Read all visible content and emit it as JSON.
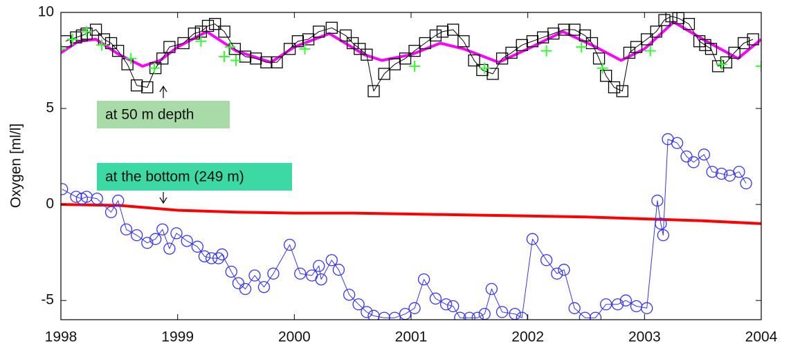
{
  "chart_data": {
    "type": "line",
    "y_label": "Oxygen [ml/l]",
    "xlim": [
      1998,
      2004
    ],
    "xticks": [
      1998,
      1999,
      2000,
      2001,
      2002,
      2003,
      2004
    ],
    "ylim": [
      -6,
      10
    ],
    "yticks": [
      -5,
      0,
      5,
      10
    ],
    "annotations": [
      "at 50 m depth",
      "at the bottom (249 m)"
    ],
    "series": [
      {
        "color": "#ff00ff",
        "marker": "none",
        "linewidth": 4,
        "x": [
          1998.0,
          1998.15,
          1998.3,
          1998.5,
          1998.7,
          1998.85,
          1999.0,
          1999.25,
          1999.5,
          1999.8,
          2000.0,
          2000.3,
          2000.6,
          2000.75,
          2001.0,
          2001.25,
          2001.45,
          2001.75,
          2002.0,
          2002.3,
          2002.55,
          2002.8,
          2003.0,
          2003.25,
          2003.5,
          2003.8,
          2004.0
        ],
        "values": [
          7.9,
          8.5,
          8.6,
          7.8,
          7.2,
          7.5,
          8.2,
          9.0,
          8.0,
          7.4,
          8.2,
          8.9,
          7.8,
          7.5,
          7.8,
          8.4,
          8.1,
          7.4,
          8.1,
          9.0,
          8.3,
          7.5,
          8.1,
          9.5,
          8.6,
          7.6,
          8.6
        ]
      },
      {
        "color": "#000000",
        "marker": "square",
        "linewidth": 1,
        "x": [
          1998.04,
          1998.13,
          1998.18,
          1998.22,
          1998.3,
          1998.37,
          1998.43,
          1998.49,
          1998.57,
          1998.65,
          1998.74,
          1998.81,
          1998.87,
          1998.93,
          1999.05,
          1999.14,
          1999.2,
          1999.26,
          1999.32,
          1999.4,
          1999.49,
          1999.58,
          1999.67,
          1999.76,
          1999.85,
          1999.96,
          2000.03,
          2000.12,
          2000.21,
          2000.32,
          2000.44,
          2000.5,
          2000.56,
          2000.62,
          2000.68,
          2000.77,
          2000.86,
          2000.95,
          2001.03,
          2001.12,
          2001.21,
          2001.27,
          2001.36,
          2001.45,
          2001.54,
          2001.61,
          2001.7,
          2001.78,
          2001.86,
          2001.95,
          2002.04,
          2002.13,
          2002.22,
          2002.31,
          2002.4,
          2002.49,
          2002.55,
          2002.61,
          2002.67,
          2002.74,
          2002.81,
          2002.87,
          2002.93,
          2003.02,
          2003.1,
          2003.17,
          2003.23,
          2003.29,
          2003.38,
          2003.47,
          2003.52,
          2003.57,
          2003.63,
          2003.7,
          2003.77,
          2003.85,
          2003.93
        ],
        "values": [
          8.5,
          8.7,
          8.8,
          8.9,
          9.1,
          8.6,
          8.4,
          8.0,
          7.3,
          6.2,
          6.1,
          7.1,
          7.6,
          8.2,
          8.4,
          8.9,
          9.0,
          9.3,
          9.4,
          9.0,
          8.1,
          7.7,
          7.6,
          7.4,
          7.4,
          8.1,
          8.5,
          8.6,
          9.0,
          9.2,
          8.8,
          8.4,
          8.1,
          7.8,
          5.9,
          6.8,
          7.3,
          7.6,
          8.0,
          8.4,
          8.8,
          9.0,
          9.1,
          8.5,
          7.5,
          7.0,
          6.8,
          7.6,
          7.9,
          8.3,
          8.5,
          8.7,
          8.9,
          9.1,
          9.1,
          8.8,
          8.4,
          7.6,
          6.7,
          6.1,
          5.9,
          7.9,
          8.2,
          8.6,
          9.0,
          9.6,
          9.8,
          9.7,
          9.4,
          8.5,
          8.3,
          8.1,
          7.2,
          7.4,
          7.9,
          8.4,
          8.6
        ]
      },
      {
        "color": "#33ff33",
        "marker": "plus",
        "linewidth": 0,
        "x": [
          1998.0,
          1998.1,
          1998.22,
          1998.35,
          1998.6,
          1998.8,
          1999.2,
          1999.4,
          1999.45,
          1999.5,
          2000.09,
          2001.03,
          2001.63,
          2002.16,
          2002.46,
          2002.64,
          2003.05,
          2003.66,
          2004.0
        ],
        "values": [
          8.1,
          8.6,
          9.0,
          8.3,
          7.6,
          7.1,
          8.5,
          7.7,
          8.2,
          7.5,
          8.1,
          7.2,
          7.1,
          8.0,
          8.2,
          7.1,
          8.0,
          7.3,
          7.2
        ]
      },
      {
        "color": "#ff0000",
        "marker": "none",
        "linewidth": 4,
        "x": [
          1998.0,
          1998.5,
          1999.0,
          1999.5,
          2000.0,
          2000.5,
          2001.0,
          2001.5,
          2002.0,
          2002.5,
          2003.0,
          2003.5,
          2004.0
        ],
        "values": [
          0,
          -0.05,
          -0.3,
          -0.4,
          -0.45,
          -0.45,
          -0.5,
          -0.55,
          -0.6,
          -0.65,
          -0.75,
          -0.85,
          -1.0
        ]
      },
      {
        "color": "#3333ff",
        "marker": "circle",
        "linewidth": 1,
        "x": [
          1998.01,
          1998.13,
          1998.18,
          1998.22,
          1998.31,
          1998.43,
          1998.49,
          1998.56,
          1998.65,
          1998.74,
          1998.81,
          1998.87,
          1998.93,
          1998.99,
          1999.08,
          1999.17,
          1999.23,
          1999.29,
          1999.35,
          1999.38,
          1999.46,
          1999.52,
          1999.58,
          1999.66,
          1999.74,
          1999.82,
          1999.96,
          2000.05,
          2000.15,
          2000.21,
          2000.23,
          2000.32,
          2000.38,
          2000.47,
          2000.55,
          2000.62,
          2000.68,
          2000.77,
          2000.86,
          2000.95,
          2001.03,
          2001.11,
          2001.21,
          2001.3,
          2001.36,
          2001.42,
          2001.5,
          2001.57,
          2001.63,
          2001.69,
          2001.78,
          2001.89,
          2001.95,
          2002.04,
          2002.16,
          2002.25,
          2002.31,
          2002.4,
          2002.49,
          2002.58,
          2002.67,
          2002.77,
          2002.84,
          2002.93,
          2003.02,
          2003.11,
          2003.14,
          2003.16,
          2003.2,
          2003.28,
          2003.36,
          2003.42,
          2003.51,
          2003.58,
          2003.66,
          2003.73,
          2003.81,
          2003.87
        ],
        "values": [
          0.8,
          0.4,
          0.3,
          0.4,
          0.3,
          -0.4,
          0.2,
          -1.3,
          -1.6,
          -2.0,
          -1.8,
          -1.3,
          -2.3,
          -1.5,
          -1.9,
          -2.2,
          -2.7,
          -2.8,
          -2.8,
          -2.6,
          -3.5,
          -4.1,
          -4.4,
          -3.7,
          -4.3,
          -3.6,
          -2.1,
          -3.6,
          -3.7,
          -3.2,
          -3.9,
          -2.9,
          -3.4,
          -4.7,
          -5.2,
          -5.6,
          -5.8,
          -5.9,
          -5.9,
          -5.7,
          -5.4,
          -3.9,
          -4.9,
          -5.2,
          -5.3,
          -5.9,
          -5.9,
          -5.9,
          -5.7,
          -4.4,
          -5.6,
          -5.7,
          -5.9,
          -1.8,
          -2.9,
          -3.6,
          -3.4,
          -5.4,
          -5.9,
          -5.9,
          -5.2,
          -5.2,
          -5.0,
          -5.3,
          -5.4,
          0.2,
          -1.0,
          -1.6,
          3.4,
          3.2,
          2.5,
          2.2,
          2.6,
          1.7,
          1.6,
          1.5,
          1.7,
          1.1
        ]
      }
    ]
  }
}
